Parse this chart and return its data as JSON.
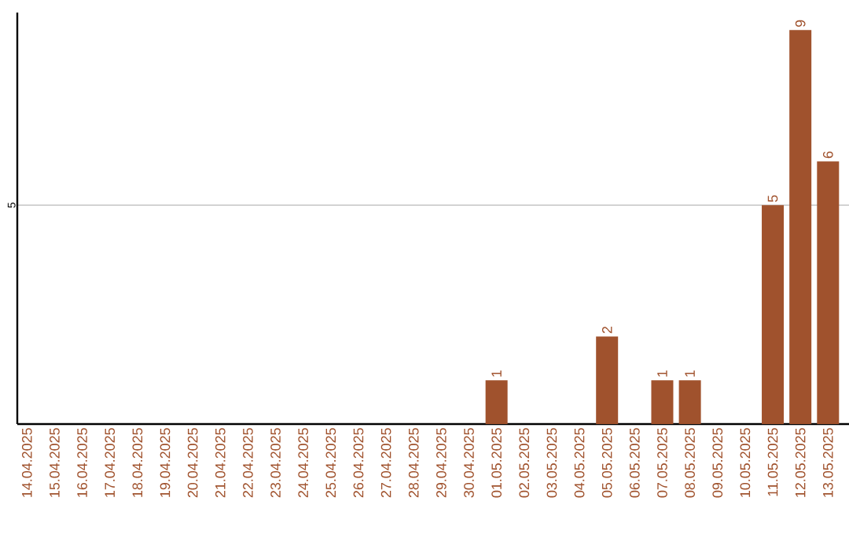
{
  "chart_data": {
    "type": "bar",
    "categories": [
      "14.04.2025",
      "15.04.2025",
      "16.04.2025",
      "17.04.2025",
      "18.04.2025",
      "19.04.2025",
      "20.04.2025",
      "21.04.2025",
      "22.04.2025",
      "23.04.2025",
      "24.04.2025",
      "25.04.2025",
      "26.04.2025",
      "27.04.2025",
      "28.04.2025",
      "29.04.2025",
      "30.04.2025",
      "01.05.2025",
      "02.05.2025",
      "03.05.2025",
      "04.05.2025",
      "05.05.2025",
      "06.05.2025",
      "07.05.2025",
      "08.05.2025",
      "09.05.2025",
      "10.05.2025",
      "11.05.2025",
      "12.05.2025",
      "13.05.2025"
    ],
    "values": [
      null,
      null,
      null,
      null,
      null,
      null,
      null,
      null,
      null,
      null,
      null,
      null,
      null,
      null,
      null,
      null,
      null,
      1,
      null,
      null,
      null,
      2,
      null,
      1,
      1,
      null,
      null,
      5,
      9,
      6
    ],
    "color": "#a0522d",
    "ylim": [
      0,
      9.4
    ],
    "yticks": [
      5
    ],
    "grid": "y",
    "data_labels": true
  }
}
